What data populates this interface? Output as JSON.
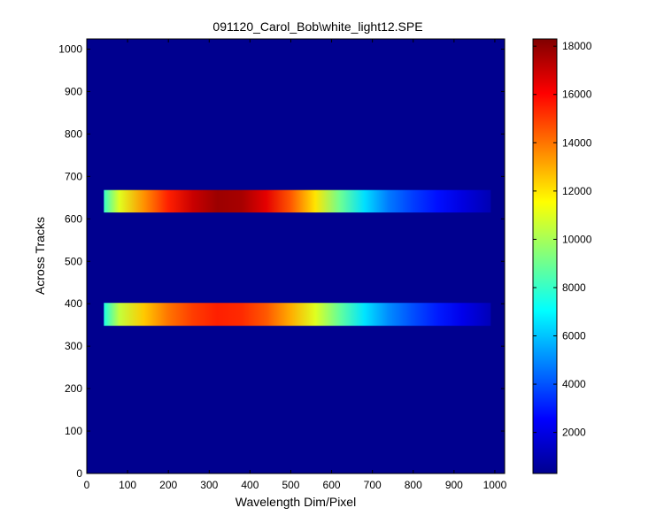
{
  "chart_data": {
    "type": "heatmap",
    "title": "091120_Carol_Bob\\white_light12.SPE",
    "xlabel": "Wavelength Dim/Pixel",
    "ylabel": "Across Tracks",
    "xlim": [
      0,
      1024
    ],
    "ylim": [
      0,
      1024
    ],
    "xticks": [
      0,
      100,
      200,
      300,
      400,
      500,
      600,
      700,
      800,
      900,
      1000
    ],
    "yticks": [
      0,
      100,
      200,
      300,
      400,
      500,
      600,
      700,
      800,
      900,
      1000
    ],
    "colormap": "jet",
    "background_value": 300,
    "clim": [
      300,
      18300
    ],
    "colorbar_ticks": [
      2000,
      4000,
      6000,
      8000,
      10000,
      12000,
      14000,
      16000,
      18000
    ],
    "bands": [
      {
        "y_range": [
          615,
          668
        ],
        "x_range": [
          42,
          990
        ],
        "profile": {
          "x": [
            42,
            80,
            140,
            200,
            260,
            320,
            380,
            440,
            500,
            560,
            620,
            680,
            740,
            800,
            860,
            920,
            990
          ],
          "values": [
            8000,
            11000,
            13500,
            15500,
            17000,
            17800,
            17600,
            16500,
            14500,
            12000,
            9000,
            6500,
            4700,
            3600,
            2800,
            2000,
            1200
          ]
        }
      },
      {
        "y_range": [
          348,
          402
        ],
        "x_range": [
          42,
          990
        ],
        "profile": {
          "x": [
            42,
            80,
            140,
            200,
            260,
            320,
            380,
            440,
            500,
            560,
            620,
            680,
            740,
            800,
            860,
            920,
            990
          ],
          "values": [
            7500,
            10500,
            12500,
            14000,
            15000,
            15500,
            15300,
            14500,
            13000,
            11000,
            8800,
            6600,
            5000,
            3900,
            3000,
            2200,
            1300
          ]
        }
      }
    ]
  }
}
